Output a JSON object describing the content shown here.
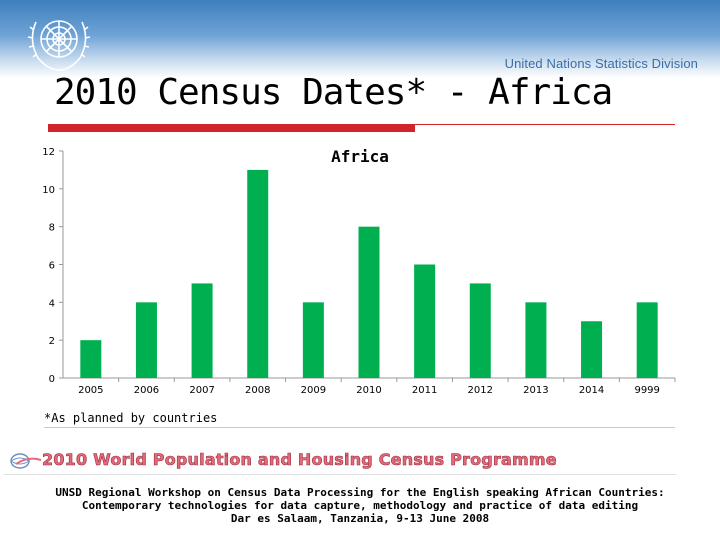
{
  "slide": {
    "title": "2010 Census Dates* - Africa",
    "org_label": "United Nations Statistics Division",
    "footnote": "*As planned by countries",
    "banner": "2010 World Population and Housing Census Programme",
    "footer": [
      "UNSD Regional Workshop on Census Data Processing for the English speaking African Countries:",
      "Contemporary technologies for data capture, methodology and practice of data editing",
      "Dar es Salaam, Tanzania, 9-13 June 2008"
    ]
  },
  "colors": {
    "bar": "#00b050",
    "accent": "#d2232a",
    "header": "#3f7fbd"
  },
  "chart_data": {
    "type": "bar",
    "title": "Africa",
    "categories": [
      "2005",
      "2006",
      "2007",
      "2008",
      "2009",
      "2010",
      "2011",
      "2012",
      "2013",
      "2014",
      "9999"
    ],
    "values": [
      2,
      4,
      5,
      11,
      4,
      8,
      6,
      5,
      4,
      3,
      4
    ],
    "ylim": [
      0,
      12
    ],
    "yticks": [
      0,
      2,
      4,
      6,
      8,
      10,
      12
    ],
    "xlabel": "",
    "ylabel": "",
    "grid": false,
    "legend": "none"
  }
}
